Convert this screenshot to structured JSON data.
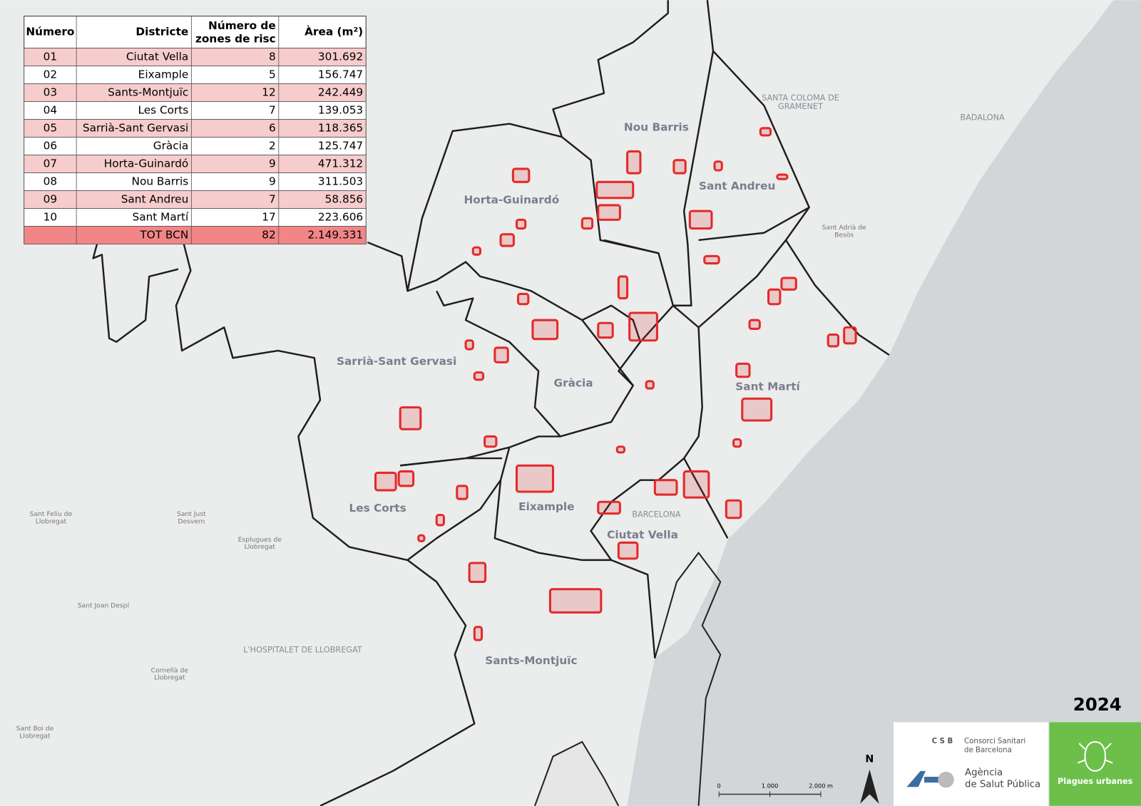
{
  "table": {
    "header": [
      "Número",
      "Districte",
      "Número de zones de risc",
      "Àrea (m²)"
    ],
    "rows": [
      [
        "01",
        "Ciutat Vella",
        "8",
        "301.692"
      ],
      [
        "02",
        "Eixample",
        "5",
        "156.747"
      ],
      [
        "03",
        "Sants-Montjuïc",
        "12",
        "242.449"
      ],
      [
        "04",
        "Les Corts",
        "7",
        "139.053"
      ],
      [
        "05",
        "Sarrià-Sant Gervasi",
        "6",
        "118.365"
      ],
      [
        "06",
        "Gràcia",
        "2",
        "125.747"
      ],
      [
        "07",
        "Horta-Guinardó",
        "9",
        "471.312"
      ],
      [
        "08",
        "Nou Barris",
        "9",
        "311.503"
      ],
      [
        "09",
        "Sant Andreu",
        "7",
        "58.856"
      ],
      [
        "10",
        "Sant Martí",
        "17",
        "223.606"
      ]
    ],
    "total": [
      "TOT BCN",
      "82",
      "2.149.331"
    ]
  },
  "districts": [
    "Nou Barris",
    "Sant Andreu",
    "Horta-Guinardó",
    "Sarrià-Sant Gervasi",
    "Gràcia",
    "Sant Martí",
    "Les Corts",
    "Eixample",
    "Ciutat Vella",
    "Sants-Montjuïc"
  ],
  "places": [
    "SANTA COLOMA DE",
    "GRAMENET",
    "BADALONA",
    "L'HOSPITALET DE LLOBREGAT",
    "BARCELONA",
    "Sant Feliu de",
    "Llobregat",
    "Sant Just",
    "Desvern",
    "Esplugues de",
    "Llobregat",
    "Sant Joan Despí",
    "Cornellà de",
    "Llobregat",
    "Sant Boi de",
    "Llobregat",
    "Sant Adrià de",
    "Besòs"
  ],
  "year": "2024",
  "logos": {
    "csb": "C S B",
    "csb_name": [
      "Consorci Sanitari",
      "de Barcelona"
    ],
    "aspb_name": [
      "Agència",
      "de Salut Pública"
    ],
    "program": "Plagues urbanes"
  },
  "scale": [
    "0",
    "1.000",
    "2.000 m"
  ],
  "north": "N"
}
